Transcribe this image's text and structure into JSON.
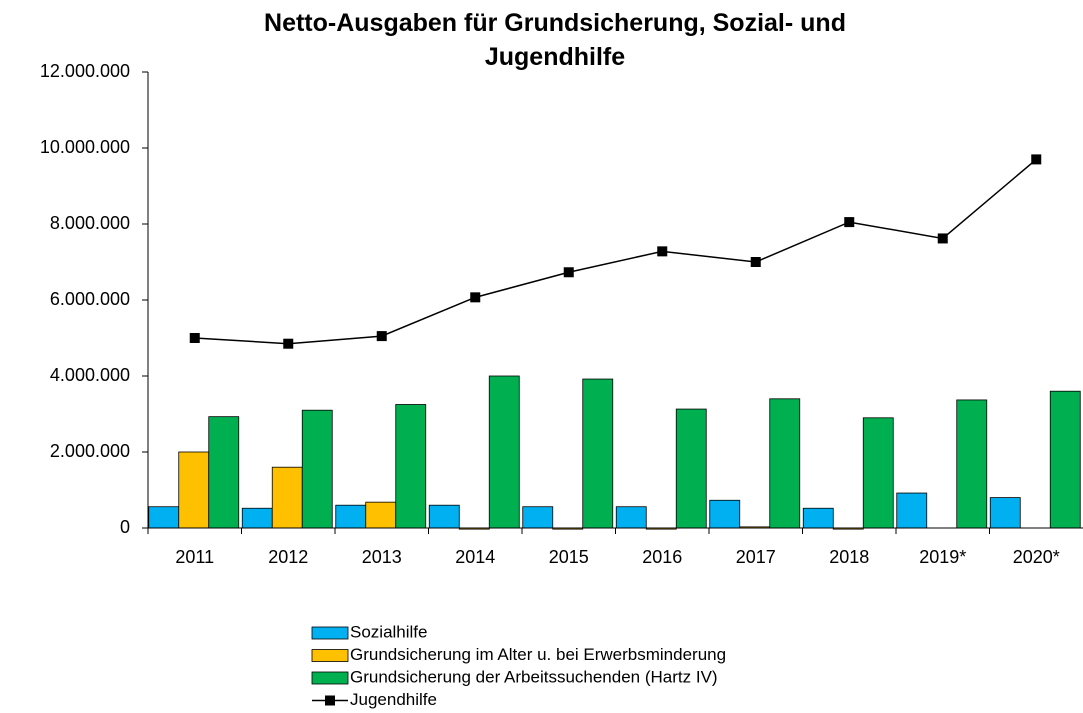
{
  "chart_data": {
    "type": "bar",
    "title": "Netto-Ausgaben für Grundsicherung, Sozial- und Jugendhilfe",
    "categories": [
      "2011",
      "2012",
      "2013",
      "2014",
      "2015",
      "2016",
      "2017",
      "2018",
      "2019*",
      "2020*"
    ],
    "series": [
      {
        "name": "Sozialhilfe",
        "type": "bar",
        "color": "#00b0f0",
        "values": [
          560000,
          520000,
          600000,
          600000,
          560000,
          560000,
          730000,
          520000,
          920000,
          800000
        ]
      },
      {
        "name": "Grundsicherung im Alter u. bei Erwerbsminderung",
        "type": "bar",
        "color": "#ffc000",
        "values": [
          2000000,
          1600000,
          680000,
          -30000,
          -30000,
          -30000,
          30000,
          -30000,
          0,
          0
        ]
      },
      {
        "name": "Grundsicherung der Arbeitssuchenden  (Hartz IV)",
        "type": "bar",
        "color": "#00b050",
        "values": [
          2930000,
          3100000,
          3250000,
          4000000,
          3920000,
          3130000,
          3400000,
          2900000,
          3370000,
          3600000
        ]
      },
      {
        "name": "Jugendhilfe",
        "type": "line",
        "color": "#000000",
        "values": [
          5000000,
          4850000,
          5050000,
          6070000,
          6730000,
          7280000,
          7000000,
          8050000,
          7620000,
          9700000
        ]
      }
    ],
    "ylim": [
      0,
      12000000
    ],
    "yticks": [
      0,
      {
        "value": 2000000,
        "label": "2.000.000"
      },
      {
        "value": 4000000,
        "label": "4.000.000"
      },
      {
        "value": 6000000,
        "label": "6.000.000"
      },
      {
        "value": 8000000,
        "label": "8.000.000"
      },
      {
        "value": 10000000,
        "label": "10.000.000"
      },
      {
        "value": 12000000,
        "label": "12.000.000"
      }
    ],
    "grid": false,
    "legend": "bottom"
  }
}
